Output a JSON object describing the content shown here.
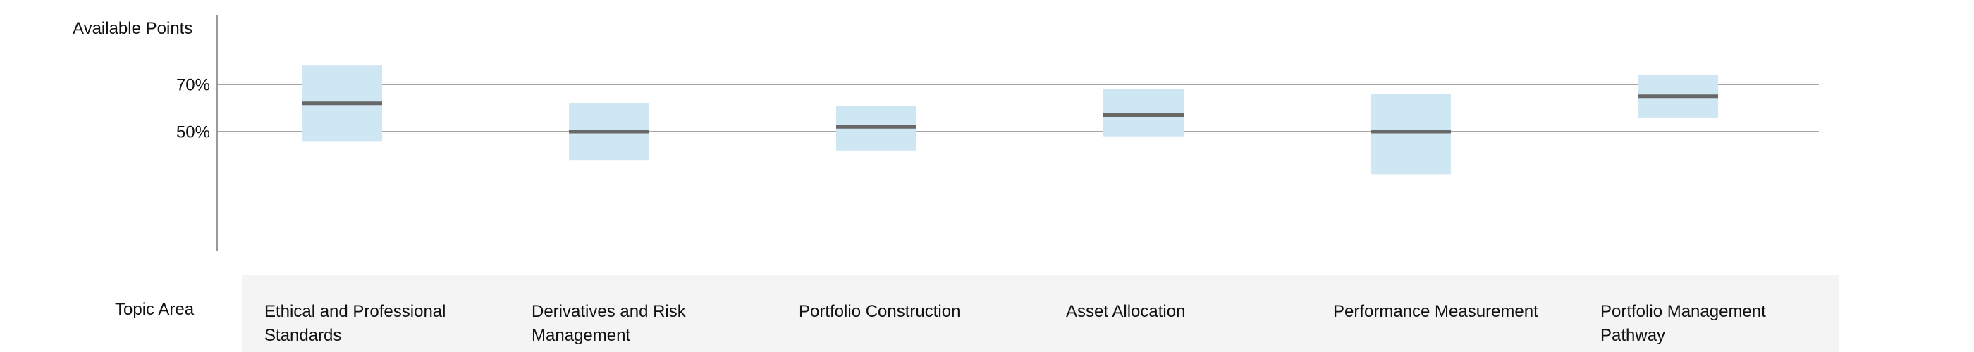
{
  "chart_data": {
    "type": "range-bar",
    "ylabel": "Available Points",
    "xlabel": "Topic Area",
    "y_ticks": [
      "70%",
      "50%"
    ],
    "y_tick_values": [
      70,
      50
    ],
    "reference_lines": [
      70,
      50
    ],
    "ylim": [
      0,
      100
    ],
    "colors": {
      "range_fill": "#cfe6f3",
      "median_line": "#686868",
      "reference_line": "#a6a6a6",
      "axis": "#999999",
      "label_band": "#f4f4f4"
    },
    "categories": [
      "Ethical and Professional Standards",
      "Derivatives and Risk Management",
      "Portfolio Construction",
      "Asset Allocation",
      "Performance Measurement",
      "Portfolio Management Pathway"
    ],
    "series": [
      {
        "low": [
          46,
          38,
          42,
          48,
          32,
          56
        ],
        "median": [
          62,
          50,
          52,
          57,
          50,
          65
        ],
        "high": [
          78,
          62,
          61,
          68,
          66,
          74
        ]
      }
    ]
  }
}
